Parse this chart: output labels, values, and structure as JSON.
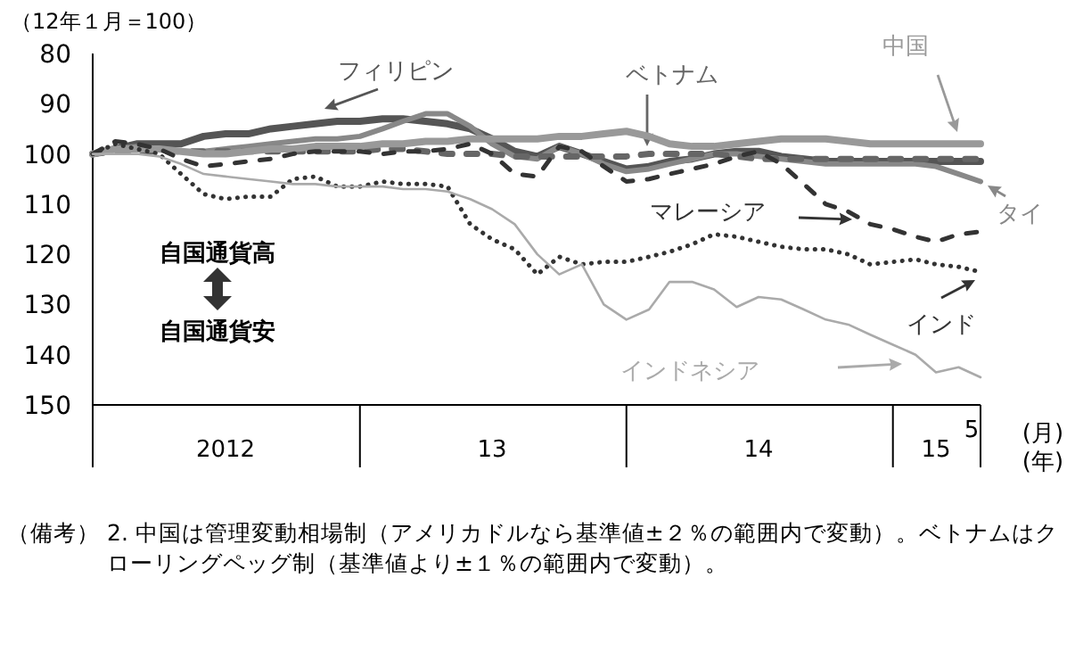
{
  "chart_data": {
    "type": "line",
    "ylabel": "（12年１月＝100）",
    "x": [
      "2012-01",
      "2012-02",
      "2012-03",
      "2012-04",
      "2012-05",
      "2012-06",
      "2012-07",
      "2012-08",
      "2012-09",
      "2012-10",
      "2012-11",
      "2012-12",
      "2013-01",
      "2013-02",
      "2013-03",
      "2013-04",
      "2013-05",
      "2013-06",
      "2013-07",
      "2013-08",
      "2013-09",
      "2013-10",
      "2013-11",
      "2013-12",
      "2014-01",
      "2014-02",
      "2014-03",
      "2014-04",
      "2014-05",
      "2014-06",
      "2014-07",
      "2014-08",
      "2014-09",
      "2014-10",
      "2014-11",
      "2014-12",
      "2015-01",
      "2015-02",
      "2015-03",
      "2015-04",
      "2015-05"
    ],
    "xlim": [
      "2012-01",
      "2015-05"
    ],
    "ylim": [
      150,
      80
    ],
    "xticks": [
      {
        "value": "2012-07",
        "label": "2012"
      },
      {
        "value": "2013-07",
        "label": "13"
      },
      {
        "value": "2014-07",
        "label": "14"
      },
      {
        "value": "2015-03",
        "label": "15"
      }
    ],
    "yticks": [
      80,
      90,
      100,
      110,
      120,
      130,
      140,
      150
    ],
    "grid": false,
    "legend": "right",
    "series": [
      {
        "name": "フィリピン",
        "color": "#555555",
        "line_style": "solid",
        "values": [
          100,
          99,
          98,
          98,
          98,
          96.5,
          96,
          96,
          95,
          94.5,
          94,
          93.5,
          93.5,
          93,
          93,
          93.5,
          94,
          95,
          97,
          99.5,
          100.5,
          98.5,
          100,
          101.5,
          103,
          102.5,
          101.5,
          101,
          100,
          99.5,
          99.5,
          100.5,
          101,
          101.5,
          101.5,
          101.5,
          101.5,
          101.5,
          101.5,
          101.5,
          101.5
        ]
      },
      {
        "name": "タイ",
        "color": "#888888",
        "line_style": "solid",
        "values": [
          100,
          99,
          98.5,
          99,
          99.5,
          99.5,
          99,
          98.5,
          98,
          97.5,
          97,
          97,
          96.5,
          95,
          93.5,
          92,
          92,
          94.5,
          98,
          100.5,
          101,
          98.5,
          100,
          102,
          103.5,
          103,
          102,
          101,
          100,
          100,
          100.5,
          101,
          101.5,
          102,
          102,
          102,
          102,
          102,
          102.5,
          104,
          105.5
        ]
      },
      {
        "name": "ベトナム",
        "color": "#666666",
        "line_style": "dashed",
        "values": [
          100,
          99.5,
          99.5,
          99.5,
          99.5,
          99.5,
          99.5,
          99.5,
          99.5,
          99.5,
          99.5,
          99.5,
          99.5,
          99,
          99,
          99.5,
          100,
          100,
          100,
          100.5,
          100.5,
          100.5,
          100.5,
          100.5,
          100.5,
          100,
          100,
          100,
          100,
          100.5,
          101,
          101,
          101,
          101,
          101,
          101,
          101,
          101,
          101,
          101,
          101
        ]
      },
      {
        "name": "中国",
        "color": "#999999",
        "line_style": "solid",
        "values": [
          100,
          99,
          99,
          99,
          99.5,
          100,
          100,
          99.5,
          99,
          99,
          98.5,
          98.5,
          98.5,
          98,
          98,
          97.5,
          97.5,
          97,
          97,
          97,
          97,
          96.5,
          96.5,
          96,
          95.5,
          96.5,
          98,
          98.5,
          98.5,
          98,
          97.5,
          97,
          97,
          97,
          97.5,
          98,
          98,
          98,
          98,
          98,
          98
        ]
      },
      {
        "name": "マレーシア",
        "color": "#333333",
        "line_style": "dashed",
        "values": [
          100,
          97.5,
          98,
          99,
          101,
          102.5,
          102,
          101.5,
          101,
          100,
          99.5,
          99.5,
          99.5,
          100,
          99.5,
          99.5,
          99,
          98,
          100,
          104,
          104.5,
          98.5,
          99.5,
          102.5,
          105.5,
          105,
          104,
          103,
          102,
          100.5,
          99.5,
          102,
          106,
          110,
          111.5,
          114,
          115,
          116.5,
          117.5,
          116,
          115.5
        ]
      },
      {
        "name": "インド",
        "color": "#333333",
        "line_style": "dotted",
        "values": [
          100,
          98,
          99,
          100,
          104,
          108,
          109,
          108.5,
          108.5,
          105,
          104.5,
          106.5,
          106.5,
          105.5,
          106,
          106,
          106.5,
          114,
          117,
          119,
          124,
          120.5,
          122,
          121.5,
          121.5,
          120.5,
          119.5,
          118,
          116,
          116.5,
          117.5,
          118.5,
          119,
          119,
          120,
          122,
          121.5,
          121,
          122,
          122.5,
          123.5
        ]
      },
      {
        "name": "インドネシア",
        "color": "#aaaaaa",
        "line_style": "solid",
        "values": [
          100,
          100,
          100,
          100.5,
          102,
          104,
          104.5,
          105,
          105.5,
          106,
          106,
          106.5,
          106.5,
          106.5,
          107,
          107,
          107.5,
          109,
          111,
          114,
          120,
          124,
          122,
          130,
          133,
          131,
          125.5,
          125.5,
          127,
          130.5,
          128.5,
          129,
          131,
          133,
          134,
          136,
          138,
          140,
          143.5,
          142.5,
          144.5
        ]
      }
    ],
    "annotations": [
      "自国通貨高",
      "自国通貨安",
      "5",
      "(月)",
      "(年)",
      "（備考）",
      "2. 中国は管理変動相場制（アメリカドルなら基準値±２％の範囲内で変動）。ベトナムはクローリングペッグ制（基準値より±１％の範囲内で変動）。"
    ]
  }
}
